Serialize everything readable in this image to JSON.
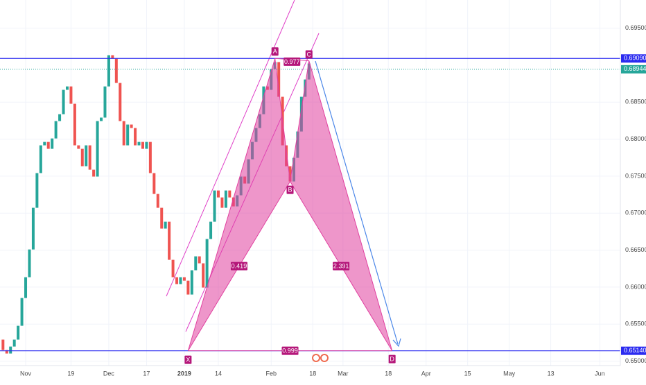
{
  "chart_data": {
    "type": "candlestick",
    "categories": [
      null,
      null,
      null,
      null,
      null,
      null,
      "Nov",
      null,
      null,
      null,
      null,
      null,
      null,
      null,
      null,
      null,
      null,
      null,
      "19",
      null,
      null,
      null,
      null,
      null,
      null,
      null,
      null,
      null,
      "Dec",
      null,
      null,
      null,
      null,
      null,
      null,
      null,
      null,
      null,
      "17",
      null,
      null,
      null,
      null,
      null,
      null,
      null,
      null,
      null,
      "2019",
      null,
      null,
      null,
      null,
      null,
      null,
      null,
      null,
      "14",
      null,
      null,
      null,
      null,
      null,
      null,
      null,
      null,
      null,
      null,
      null,
      null,
      null,
      "Feb",
      null,
      null,
      null,
      null,
      null,
      null,
      null,
      null,
      null,
      null,
      "18",
      null,
      null,
      null,
      null,
      null,
      null,
      null,
      "Mar",
      null,
      null,
      null,
      null,
      null,
      null,
      null,
      null,
      null,
      null,
      null,
      "18",
      null,
      null,
      null,
      null,
      null,
      null,
      null,
      null,
      null,
      "Apr",
      null,
      null,
      null,
      null,
      null,
      null,
      null,
      null,
      null,
      null,
      "15",
      null,
      null,
      null,
      null,
      null,
      null,
      null,
      null,
      null,
      null,
      "May",
      null,
      null,
      null,
      null,
      null,
      null,
      null,
      null,
      null,
      null,
      "13",
      null,
      null,
      null,
      null,
      null,
      null,
      null,
      null,
      null,
      null,
      null,
      null,
      "Jun",
      null,
      null,
      null,
      null,
      null
    ],
    "open": [
      0.65291,
      0.6515,
      0.65103,
      0.65197,
      0.65291,
      0.65478,
      0.65853,
      0.66134,
      0.66509,
      0.67072,
      0.67541,
      0.67916,
      0.67962,
      0.67869,
      0.68009,
      0.68244,
      0.68337,
      0.68666,
      0.68712,
      0.68478,
      0.67916,
      0.67869,
      0.67634,
      0.67916,
      0.67587,
      0.67494,
      0.68244,
      0.68291,
      0.68712,
      0.69134,
      0.69087,
      0.68759,
      0.68244,
      0.67916,
      0.68197,
      0.6815,
      0.67916,
      0.67962,
      0.67869,
      0.67962,
      0.67541,
      0.67259,
      0.67072,
      0.66791,
      0.66884,
      0.66369,
      0.66134,
      0.66041,
      0.66134,
      0.66087,
      0.659,
      0.66228,
      0.66416,
      0.66322,
      0.65994,
      0.6665,
      0.66884,
      0.67306,
      0.67212,
      0.67072,
      0.67306,
      0.67212,
      0.67091,
      0.67241,
      0.67494,
      0.674,
      0.67728,
      0.67962,
      0.6815,
      0.68337,
      0.68712,
      0.68666,
      0.68947,
      0.69041,
      0.68572,
      0.67916,
      0.67634,
      0.67428,
      0.67747,
      0.68103,
      0.68572,
      0.68806,
      null,
      null,
      null,
      null,
      null,
      null,
      null,
      null,
      null,
      null,
      null,
      null,
      null,
      null,
      null,
      null,
      null,
      null,
      null,
      null,
      null,
      null,
      null,
      null,
      null,
      null,
      null,
      null,
      null,
      null,
      null,
      null,
      null,
      null,
      null,
      null,
      null,
      null,
      null,
      null,
      null,
      null,
      null,
      null,
      null,
      null,
      null,
      null,
      null,
      null,
      null,
      null,
      null,
      null,
      null,
      null,
      null,
      null,
      null,
      null,
      null,
      null,
      null,
      null,
      null,
      null,
      null,
      null,
      null,
      null,
      null,
      null,
      null,
      null,
      null,
      null,
      null,
      null,
      null,
      null,
      null,
      null
    ],
    "close": [
      0.6515,
      0.65103,
      0.65197,
      0.65291,
      0.65478,
      0.65853,
      0.66134,
      0.66509,
      0.67072,
      0.67541,
      0.67916,
      0.67962,
      0.67869,
      0.68009,
      0.68244,
      0.68337,
      0.68666,
      0.68712,
      0.68478,
      0.67916,
      0.67869,
      0.67634,
      0.67916,
      0.67587,
      0.67494,
      0.68244,
      0.68291,
      0.68712,
      0.69134,
      0.69087,
      0.68759,
      0.68244,
      0.67916,
      0.68197,
      0.6815,
      0.67916,
      0.67962,
      0.67869,
      0.67962,
      0.67541,
      0.67259,
      0.67072,
      0.66791,
      0.66884,
      0.66369,
      0.66134,
      0.66041,
      0.66134,
      0.66087,
      0.659,
      0.66228,
      0.66416,
      0.66322,
      0.65994,
      0.6665,
      0.66884,
      0.67306,
      0.67212,
      0.67072,
      0.67306,
      0.67212,
      0.67091,
      0.67241,
      0.67494,
      0.674,
      0.67728,
      0.67962,
      0.6815,
      0.68337,
      0.68712,
      0.68666,
      0.68947,
      0.69041,
      0.68572,
      0.67916,
      0.67634,
      0.67428,
      0.67747,
      0.68103,
      0.68572,
      0.68806,
      0.69022,
      null,
      null,
      null,
      null,
      null,
      null,
      null,
      null,
      null,
      null,
      null,
      null,
      null,
      null,
      null,
      null,
      null,
      null,
      null,
      null,
      null,
      null,
      null,
      null,
      null,
      null,
      null,
      null,
      null,
      null,
      null,
      null,
      null,
      null,
      null,
      null,
      null,
      null,
      null,
      null,
      null,
      null,
      null,
      null,
      null,
      null,
      null,
      null,
      null,
      null,
      null,
      null,
      null,
      null,
      null,
      null,
      null,
      null,
      null,
      null,
      null,
      null,
      null,
      null,
      null,
      null,
      null,
      null,
      null,
      null,
      null,
      null,
      null,
      null,
      null,
      null,
      null,
      null,
      null,
      null,
      null,
      null
    ],
    "up_color": "#26a69a",
    "down_color": "#ef5350",
    "ylim": [
      0.6494,
      0.6988
    ],
    "yticks": [
      {
        "value": 0.695,
        "label": "0.69500"
      },
      {
        "value": 0.685,
        "label": "0.68500"
      },
      {
        "value": 0.68,
        "label": "0.68000"
      },
      {
        "value": 0.675,
        "label": "0.67500"
      },
      {
        "value": 0.67,
        "label": "0.67000"
      },
      {
        "value": 0.665,
        "label": "0.66500"
      },
      {
        "value": 0.66,
        "label": "0.66000"
      },
      {
        "value": 0.655,
        "label": "0.65500"
      },
      {
        "value": 0.65,
        "label": "0.65000"
      }
    ],
    "grid": true,
    "levels": [
      {
        "value": 0.6909,
        "label": "0.69090",
        "color": "#2b2bf0",
        "style": "solid"
      },
      {
        "value": 0.68944,
        "label": "0.68944",
        "color": "#26a69a",
        "style": "dotted"
      },
      {
        "value": 0.6514,
        "label": "0.65140",
        "color": "#2b2bf0",
        "style": "solid"
      }
    ],
    "pattern": {
      "color": "#e0409f",
      "points": [
        {
          "label": "X",
          "value": 0.6514
        },
        {
          "label": "A",
          "value": 0.6909
        },
        {
          "label": "B",
          "value": 0.67428
        },
        {
          "label": "C",
          "value": 0.6906
        },
        {
          "label": "D",
          "value": 0.6514
        }
      ],
      "ratios": [
        0.419,
        0.977,
        2.391,
        0.999
      ]
    }
  }
}
